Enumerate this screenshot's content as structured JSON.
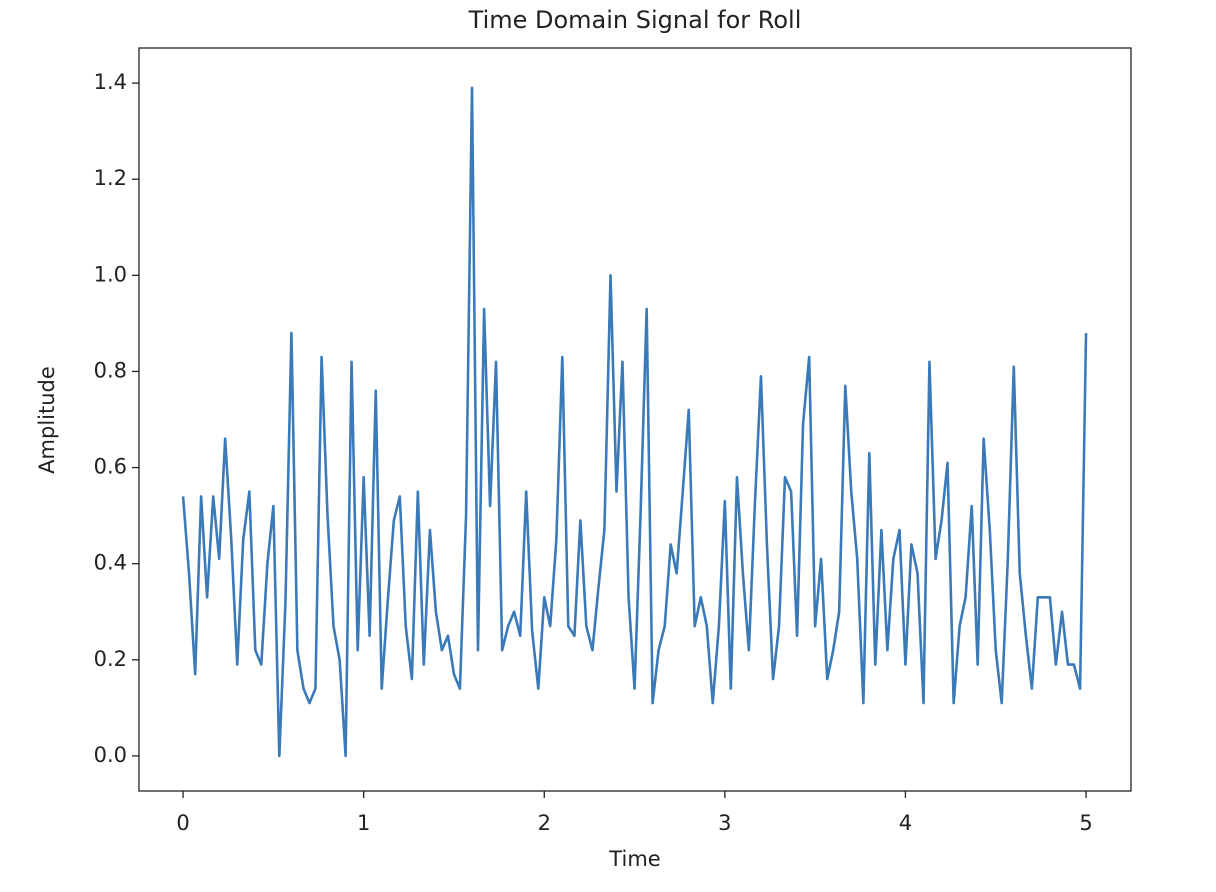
{
  "chart_data": {
    "type": "line",
    "title": "Time Domain Signal for Roll",
    "x_label": "Time",
    "y_label": "Amplitude",
    "x": [
      0,
      0.033,
      0.067,
      0.1,
      0.133,
      0.167,
      0.2,
      0.233,
      0.267,
      0.3,
      0.333,
      0.367,
      0.4,
      0.433,
      0.467,
      0.5,
      0.533,
      0.567,
      0.6,
      0.633,
      0.667,
      0.7,
      0.733,
      0.767,
      0.8,
      0.833,
      0.867,
      0.9,
      0.933,
      0.967,
      1,
      1.033,
      1.067,
      1.1,
      1.133,
      1.167,
      1.2,
      1.233,
      1.267,
      1.3,
      1.333,
      1.367,
      1.4,
      1.433,
      1.467,
      1.5,
      1.533,
      1.567,
      1.6,
      1.633,
      1.667,
      1.7,
      1.733,
      1.767,
      1.8,
      1.833,
      1.867,
      1.9,
      1.933,
      1.967,
      2,
      2.033,
      2.067,
      2.1,
      2.133,
      2.167,
      2.2,
      2.233,
      2.267,
      2.3,
      2.333,
      2.367,
      2.4,
      2.433,
      2.467,
      2.5,
      2.533,
      2.567,
      2.6,
      2.633,
      2.667,
      2.7,
      2.733,
      2.767,
      2.8,
      2.833,
      2.867,
      2.9,
      2.933,
      2.967,
      3,
      3.033,
      3.067,
      3.1,
      3.133,
      3.167,
      3.2,
      3.233,
      3.267,
      3.3,
      3.333,
      3.367,
      3.4,
      3.433,
      3.467,
      3.5,
      3.533,
      3.567,
      3.6,
      3.633,
      3.667,
      3.7,
      3.733,
      3.767,
      3.8,
      3.833,
      3.867,
      3.9,
      3.933,
      3.967,
      4,
      4.033,
      4.067,
      4.1,
      4.133,
      4.167,
      4.2,
      4.233,
      4.267,
      4.3,
      4.333,
      4.367,
      4.4,
      4.433,
      4.467,
      4.5,
      4.533,
      4.567,
      4.6,
      4.633,
      4.667,
      4.7,
      4.733,
      4.767,
      4.8,
      4.833,
      4.867,
      4.9,
      4.933,
      4.967,
      5
    ],
    "series": [
      {
        "name": "Roll",
        "color": "#3a7ab8",
        "values": [
          0.54,
          0.38,
          0.17,
          0.54,
          0.33,
          0.54,
          0.41,
          0.66,
          0.45,
          0.19,
          0.45,
          0.55,
          0.22,
          0.19,
          0.4,
          0.52,
          0.0,
          0.32,
          0.88,
          0.22,
          0.14,
          0.11,
          0.14,
          0.83,
          0.5,
          0.27,
          0.2,
          0.0,
          0.82,
          0.22,
          0.58,
          0.25,
          0.76,
          0.14,
          0.32,
          0.49,
          0.54,
          0.27,
          0.16,
          0.55,
          0.19,
          0.47,
          0.3,
          0.22,
          0.25,
          0.17,
          0.14,
          0.5,
          1.39,
          0.22,
          0.93,
          0.52,
          0.82,
          0.22,
          0.27,
          0.3,
          0.25,
          0.55,
          0.26,
          0.14,
          0.33,
          0.27,
          0.45,
          0.83,
          0.27,
          0.25,
          0.49,
          0.27,
          0.22,
          0.35,
          0.47,
          1.0,
          0.55,
          0.82,
          0.33,
          0.14,
          0.5,
          0.93,
          0.11,
          0.22,
          0.27,
          0.44,
          0.38,
          0.55,
          0.72,
          0.27,
          0.33,
          0.27,
          0.11,
          0.27,
          0.53,
          0.14,
          0.58,
          0.38,
          0.22,
          0.53,
          0.79,
          0.44,
          0.16,
          0.27,
          0.58,
          0.55,
          0.25,
          0.69,
          0.83,
          0.27,
          0.41,
          0.16,
          0.22,
          0.3,
          0.77,
          0.55,
          0.41,
          0.11,
          0.63,
          0.19,
          0.47,
          0.22,
          0.41,
          0.47,
          0.19,
          0.44,
          0.38,
          0.11,
          0.82,
          0.41,
          0.49,
          0.61,
          0.11,
          0.27,
          0.33,
          0.52,
          0.19,
          0.66,
          0.47,
          0.22,
          0.11,
          0.41,
          0.81,
          0.38,
          0.25,
          0.14,
          0.33,
          0.33,
          0.33,
          0.19,
          0.3,
          0.19,
          0.19,
          0.14,
          0.88
        ]
      }
    ],
    "xlim": [
      -0.244,
      5.249
    ],
    "ylim": [
      -0.073,
      1.473
    ],
    "xticks": [
      0,
      1,
      2,
      3,
      4,
      5
    ],
    "yticks": [
      {
        "value": 0,
        "label": "0.0"
      },
      {
        "value": 0.2,
        "label": "0.2"
      },
      {
        "value": 0.4,
        "label": "0.4"
      },
      {
        "value": 0.6,
        "label": "0.6"
      },
      {
        "value": 0.8,
        "label": "0.8"
      },
      {
        "value": 1,
        "label": "1.0"
      },
      {
        "value": 1.2,
        "label": "1.2"
      },
      {
        "value": 1.4,
        "label": "1.4"
      }
    ],
    "grid": false
  }
}
